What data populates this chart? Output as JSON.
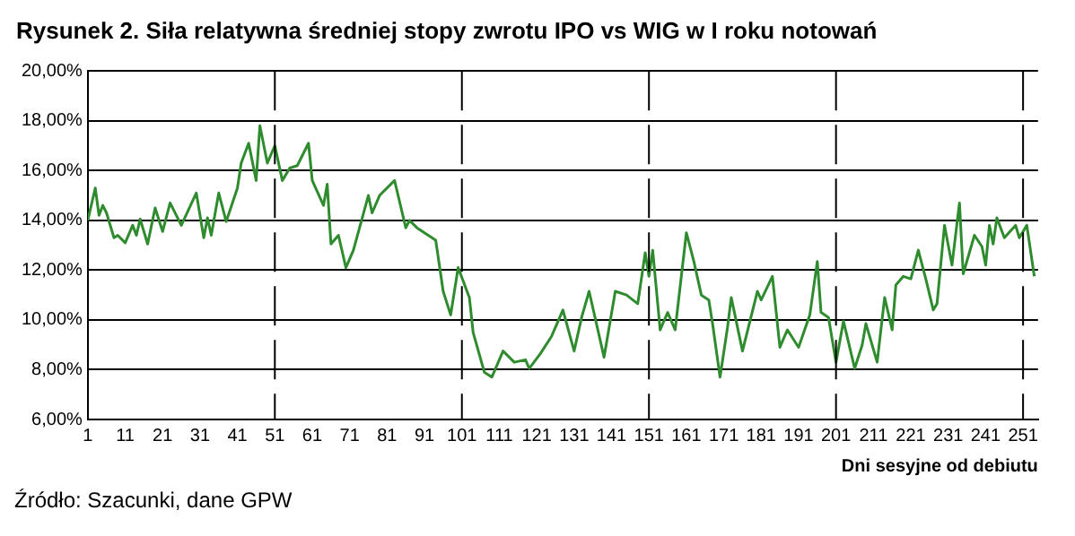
{
  "chart_data": {
    "type": "line",
    "title": "Rysunek 2. Siła relatywna średniej stopy zwrotu IPO vs WIG w I roku notowań",
    "xlabel": "Dni sesyjne od debiutu",
    "annotations": [
      "Źródło: Szacunki, dane GPW"
    ],
    "x": [
      1,
      3,
      4,
      5,
      6,
      8,
      9,
      11,
      13,
      14,
      15,
      17,
      19,
      21,
      23,
      26,
      30,
      32,
      33,
      34,
      36,
      38,
      41,
      42,
      44,
      46,
      47,
      49,
      51,
      53,
      55,
      57,
      60,
      61,
      64,
      65,
      66,
      68,
      70,
      72,
      76,
      77,
      79,
      83,
      86,
      87,
      89,
      91,
      94,
      96,
      98,
      100,
      103,
      104,
      107,
      109,
      112,
      115,
      118,
      119,
      122,
      125,
      128,
      131,
      133,
      135,
      139,
      142,
      145,
      148,
      150,
      151,
      152,
      154,
      156,
      158,
      161,
      163,
      165,
      167,
      168,
      170,
      172,
      173,
      176,
      180,
      181,
      184,
      186,
      188,
      191,
      194,
      196,
      197,
      199,
      201,
      203,
      206,
      208,
      209,
      212,
      214,
      216,
      217,
      219,
      221,
      223,
      225,
      227,
      228,
      230,
      232,
      234,
      235,
      238,
      240,
      241,
      242,
      243,
      244,
      246,
      249,
      250,
      252,
      254
    ],
    "series": [
      {
        "color": "#2e8b2e",
        "values": [
          14.0,
          15.3,
          14.2,
          14.6,
          14.3,
          13.3,
          13.4,
          13.1,
          13.8,
          13.4,
          14.05,
          13.05,
          14.5,
          13.55,
          14.7,
          13.8,
          15.1,
          13.3,
          14.1,
          13.4,
          15.1,
          13.95,
          15.3,
          16.3,
          17.1,
          15.6,
          17.8,
          16.3,
          17.0,
          15.6,
          16.1,
          16.2,
          17.1,
          15.6,
          14.6,
          15.45,
          13.05,
          13.4,
          12.1,
          12.8,
          15.0,
          14.3,
          15.0,
          15.6,
          13.7,
          14.0,
          13.7,
          13.5,
          13.2,
          11.15,
          10.2,
          12.1,
          10.9,
          9.5,
          7.9,
          7.7,
          8.75,
          8.3,
          8.4,
          8.05,
          8.65,
          9.35,
          10.4,
          8.75,
          10.1,
          11.15,
          8.5,
          11.15,
          11.0,
          10.65,
          12.7,
          11.75,
          12.8,
          9.6,
          10.3,
          9.6,
          13.5,
          12.35,
          11.0,
          10.8,
          9.85,
          7.7,
          9.7,
          10.9,
          8.75,
          11.15,
          10.8,
          11.75,
          8.9,
          9.6,
          8.9,
          10.2,
          12.35,
          10.3,
          10.1,
          8.3,
          9.95,
          8.05,
          9.0,
          9.85,
          8.3,
          10.9,
          9.6,
          11.4,
          11.75,
          11.65,
          12.8,
          11.65,
          10.4,
          10.65,
          13.8,
          12.2,
          14.7,
          11.85,
          13.4,
          12.95,
          12.2,
          13.8,
          13.05,
          14.1,
          13.3,
          13.8,
          13.3,
          13.8,
          11.75
        ]
      }
    ],
    "xlim": [
      1,
      255
    ],
    "xticks": [
      1,
      11,
      21,
      31,
      41,
      51,
      61,
      71,
      81,
      91,
      101,
      111,
      121,
      131,
      141,
      151,
      161,
      171,
      181,
      191,
      201,
      211,
      221,
      231,
      241,
      251
    ],
    "ylim": [
      6,
      20
    ],
    "yticks": [
      {
        "value": 6,
        "label": "6,00%"
      },
      {
        "value": 8,
        "label": "8,00%"
      },
      {
        "value": 10,
        "label": "10,00%"
      },
      {
        "value": 12,
        "label": "12,00%"
      },
      {
        "value": 14,
        "label": "14,00%"
      },
      {
        "value": 16,
        "label": "16,00%"
      },
      {
        "value": 18,
        "label": "18,00%"
      },
      {
        "value": 20,
        "label": "20,00%"
      }
    ],
    "grid": "y",
    "legend": false,
    "marker": "none",
    "line_style": "solid",
    "ref_lines": [
      {
        "axis": "x",
        "value": 51,
        "color": "#000000",
        "line_style": "dashed"
      },
      {
        "axis": "x",
        "value": 101,
        "color": "#000000",
        "line_style": "dashed"
      },
      {
        "axis": "x",
        "value": 151,
        "color": "#000000",
        "line_style": "dashed"
      },
      {
        "axis": "x",
        "value": 201,
        "color": "#000000",
        "line_style": "dashed"
      },
      {
        "axis": "x",
        "value": 251,
        "color": "#000000",
        "line_style": "dashed"
      }
    ]
  }
}
